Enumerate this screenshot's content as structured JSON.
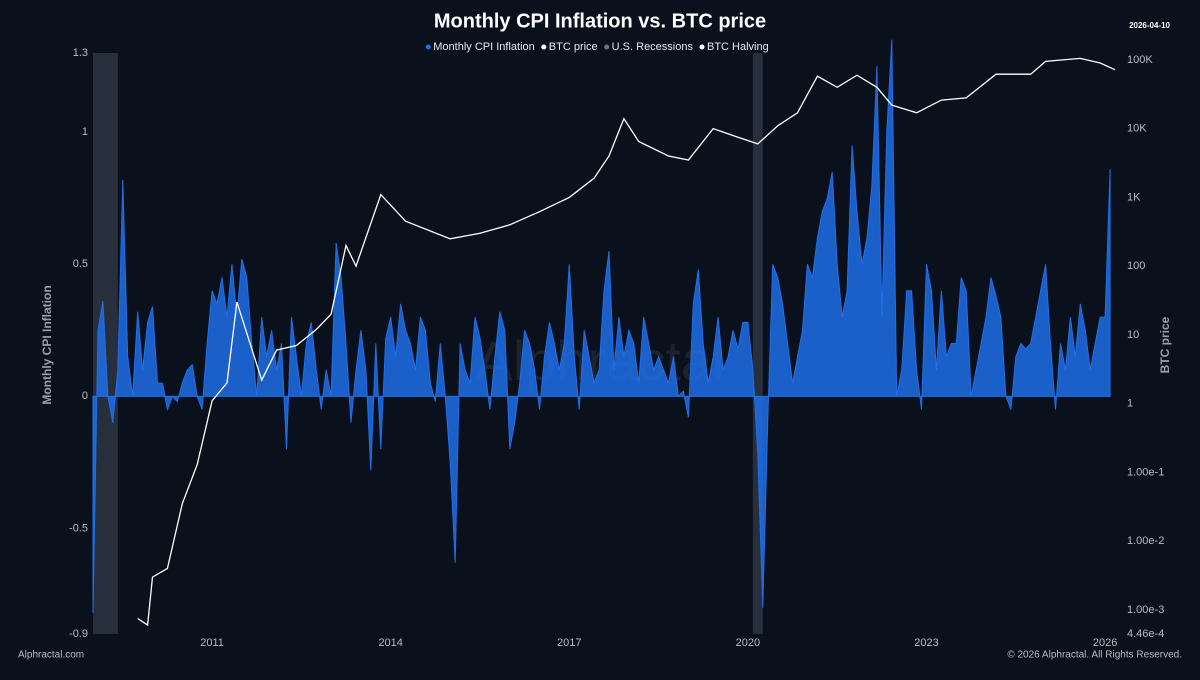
{
  "date": "2026-04-10",
  "footer_left": "Alphractal.com",
  "footer_right": "© 2026 Alphractal. All Rights Reserved.",
  "watermark": "Alphractal",
  "chart_data": {
    "type": "area-line",
    "title": "Monthly CPI Inflation vs. BTC price",
    "ylabel": "Monthly CPI Inflation",
    "y2label": "BTC price",
    "grid": false,
    "log_y2": true,
    "xlim": [
      "2009-01",
      "2026-04"
    ],
    "xticks": [
      2011,
      2014,
      2017,
      2020,
      2023,
      2026
    ],
    "ylim": [
      -0.9,
      1.3
    ],
    "yticks": [
      -0.9,
      -0.5,
      0,
      0.5,
      1,
      1.3
    ],
    "y2lim": [
      0.000446,
      126000
    ],
    "y2ticks": [
      {
        "value": 0.000446,
        "label": "4.46e-4"
      },
      {
        "value": 0.001,
        "label": "1.00e-3"
      },
      {
        "value": 0.01,
        "label": "1.00e-2"
      },
      {
        "value": 0.1,
        "label": "1.00e-1"
      },
      1,
      10,
      100,
      {
        "value": 1000,
        "label": "1K"
      },
      {
        "value": 10000,
        "label": "10K"
      },
      {
        "value": 100000,
        "label": "100K"
      }
    ],
    "recessions": {
      "name": "U.S. Recessions",
      "color": "#2b3340",
      "periods": [
        [
          "2009-01",
          "2009-06"
        ],
        [
          "2020-02",
          "2020-04"
        ]
      ]
    },
    "halving": {
      "name": "BTC Halving",
      "color": "#ffffff"
    },
    "series": [
      {
        "name": "Monthly CPI Inflation",
        "color": "#1f6fe8",
        "start": "2009-01",
        "values": [
          -0.82,
          0.25,
          0.36,
          0.0,
          -0.1,
          0.1,
          0.82,
          0.15,
          0.0,
          0.32,
          0.1,
          0.28,
          0.34,
          0.05,
          0.05,
          -0.05,
          0.0,
          -0.02,
          0.05,
          0.1,
          0.12,
          0.0,
          -0.05,
          0.2,
          0.4,
          0.35,
          0.45,
          0.3,
          0.5,
          0.3,
          0.52,
          0.45,
          0.2,
          0.0,
          0.3,
          0.15,
          0.25,
          0.1,
          0.2,
          -0.2,
          0.3,
          0.15,
          0.0,
          0.2,
          0.28,
          0.1,
          -0.05,
          0.1,
          0.0,
          0.58,
          0.45,
          0.2,
          -0.1,
          0.1,
          0.25,
          0.1,
          -0.28,
          0.2,
          -0.2,
          0.22,
          0.3,
          0.15,
          0.35,
          0.25,
          0.2,
          0.1,
          0.3,
          0.25,
          0.05,
          -0.02,
          0.2,
          0.0,
          -0.25,
          -0.63,
          0.2,
          0.1,
          0.05,
          0.3,
          0.22,
          0.1,
          -0.05,
          0.15,
          0.32,
          0.25,
          -0.2,
          -0.1,
          0.05,
          0.25,
          0.2,
          0.1,
          -0.05,
          0.15,
          0.28,
          0.2,
          0.1,
          0.2,
          0.5,
          0.15,
          -0.05,
          0.25,
          0.15,
          0.05,
          0.1,
          0.4,
          0.55,
          0.1,
          0.3,
          0.15,
          0.25,
          0.2,
          0.05,
          0.3,
          0.2,
          0.1,
          0.15,
          0.1,
          0.05,
          0.15,
          0.0,
          0.02,
          -0.08,
          0.35,
          0.48,
          0.2,
          0.05,
          0.15,
          0.3,
          0.1,
          0.15,
          0.25,
          0.18,
          0.28,
          0.28,
          0.1,
          -0.22,
          -0.8,
          -0.1,
          0.5,
          0.45,
          0.35,
          0.2,
          0.05,
          0.15,
          0.25,
          0.5,
          0.45,
          0.6,
          0.7,
          0.75,
          0.85,
          0.5,
          0.3,
          0.4,
          0.95,
          0.7,
          0.5,
          0.6,
          0.8,
          1.25,
          0.3,
          1.0,
          1.35,
          0.0,
          0.1,
          0.4,
          0.4,
          0.1,
          -0.05,
          0.5,
          0.4,
          0.1,
          0.4,
          0.15,
          0.2,
          0.2,
          0.45,
          0.4,
          0.0,
          0.1,
          0.2,
          0.3,
          0.45,
          0.38,
          0.3,
          0.0,
          -0.05,
          0.15,
          0.2,
          0.18,
          0.2,
          0.3,
          0.4,
          0.5,
          0.2,
          -0.05,
          0.2,
          0.1,
          0.3,
          0.15,
          0.35,
          0.25,
          0.1,
          0.2,
          0.3,
          0.3,
          0.86
        ]
      },
      {
        "name": "BTC price",
        "color": "#ffffff",
        "axis": "y2",
        "x": [
          "2009-10",
          "2009-12",
          "2010-01",
          "2010-04",
          "2010-07",
          "2010-10",
          "2011-01",
          "2011-04",
          "2011-06",
          "2011-11",
          "2012-02",
          "2012-06",
          "2012-10",
          "2013-01",
          "2013-04",
          "2013-06",
          "2013-11",
          "2014-04",
          "2015-01",
          "2015-07",
          "2016-01",
          "2016-07",
          "2017-01",
          "2017-06",
          "2017-09",
          "2017-12",
          "2018-03",
          "2018-09",
          "2019-01",
          "2019-06",
          "2019-11",
          "2020-03",
          "2020-07",
          "2020-11",
          "2021-03",
          "2021-07",
          "2021-11",
          "2022-03",
          "2022-06",
          "2022-11",
          "2023-04",
          "2023-09",
          "2024-03",
          "2024-10",
          "2025-01",
          "2025-08",
          "2025-12",
          "2026-03"
        ],
        "values": [
          0.00075,
          0.0006,
          0.003,
          0.004,
          0.035,
          0.13,
          1.1,
          2,
          30,
          2.2,
          6,
          7,
          12,
          20,
          200,
          100,
          1100,
          450,
          250,
          300,
          400,
          620,
          1000,
          1900,
          4000,
          14000,
          6500,
          4000,
          3500,
          10000,
          7500,
          6000,
          11000,
          17000,
          58000,
          40000,
          60000,
          40000,
          22000,
          17000,
          26000,
          28000,
          62000,
          62000,
          95000,
          105000,
          90000,
          72000
        ]
      }
    ]
  }
}
